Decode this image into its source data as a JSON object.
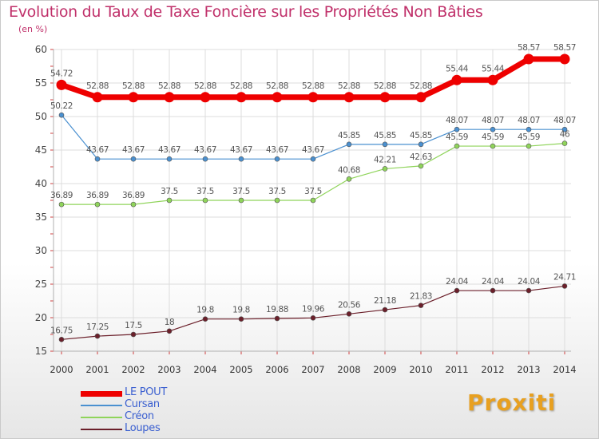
{
  "header": {
    "title": "Evolution du Taux de Taxe Foncière sur les Propriétés Non Bâties",
    "unit": "(en %)"
  },
  "colors": {
    "title": "#c0306a",
    "legend_text": "#3a5fd0",
    "grid": "#dcdcdc",
    "axis": "#b0b0b0"
  },
  "logo": {
    "text": "Proxiti"
  },
  "chart_data": {
    "type": "line",
    "title": "Evolution du Taux de Taxe Foncière sur les Propriétés Non Bâties",
    "ylabel": "(en %)",
    "xlabel": "",
    "x": [
      "2000",
      "2001",
      "2002",
      "2003",
      "2004",
      "2005",
      "2006",
      "2007",
      "2008",
      "2009",
      "2010",
      "2011",
      "2012",
      "2013",
      "2014"
    ],
    "ylim": [
      15,
      60
    ],
    "yticks": [
      15,
      20,
      25,
      30,
      35,
      40,
      45,
      50,
      55,
      60
    ],
    "grid": true,
    "legend_position": "bottom-left",
    "series": [
      {
        "name": "LE POUT",
        "color": "#ee0000",
        "values": [
          54.72,
          52.88,
          52.88,
          52.88,
          52.88,
          52.88,
          52.88,
          52.88,
          52.88,
          52.88,
          52.88,
          55.44,
          55.44,
          58.57,
          58.57
        ],
        "labels": [
          "54.72",
          "52.88",
          "52.88",
          "52.88",
          "52.88",
          "52.88",
          "52.88",
          "52.88",
          "52.88",
          "52.88",
          "52.88",
          "55.44",
          "55.44",
          "58.57",
          "58.57"
        ]
      },
      {
        "name": "Cursan",
        "color": "#4a90d0",
        "values": [
          50.22,
          43.67,
          43.67,
          43.67,
          43.67,
          43.67,
          43.67,
          43.67,
          45.85,
          45.85,
          45.85,
          48.07,
          48.07,
          48.07,
          48.07
        ],
        "labels": [
          "50.22",
          "43.67",
          "43.67",
          "43.67",
          "43.67",
          "43.67",
          "43.67",
          "43.67",
          "45.85",
          "45.85",
          "45.85",
          "48.07",
          "48.07",
          "48.07",
          "48.07"
        ]
      },
      {
        "name": "Créon",
        "color": "#8fd45a",
        "values": [
          36.89,
          36.89,
          36.89,
          37.5,
          37.5,
          37.5,
          37.5,
          37.5,
          40.68,
          42.21,
          42.63,
          45.59,
          45.59,
          45.59,
          46
        ],
        "labels": [
          "36.89",
          "36.89",
          "36.89",
          "37.5",
          "37.5",
          "37.5",
          "37.5",
          "37.5",
          "40.68",
          "42.21",
          "42.63",
          "45.59",
          "45.59",
          "45.59",
          "46"
        ]
      },
      {
        "name": "Loupes",
        "color": "#6b1f2a",
        "values": [
          16.75,
          17.25,
          17.5,
          18,
          19.8,
          19.8,
          19.88,
          19.96,
          20.56,
          21.18,
          21.83,
          24.04,
          24.04,
          24.04,
          24.71
        ],
        "labels": [
          "16.75",
          "17.25",
          "17.5",
          "18",
          "19.8",
          "19.8",
          "19.88",
          "19.96",
          "20.56",
          "21.18",
          "21.83",
          "24.04",
          "24.04",
          "24.04",
          "24.71"
        ]
      }
    ]
  }
}
